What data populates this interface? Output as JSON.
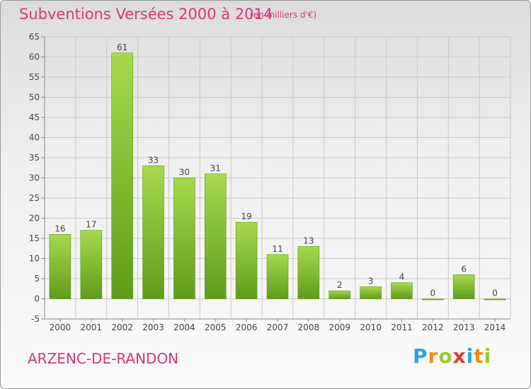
{
  "title": "Subventions Versées 2000 à 2014",
  "subtitle": "(en milliers d'€)",
  "commune": "ARZENC-DE-RANDON",
  "brand": {
    "text": "Proxiti",
    "colors": [
      "#2aa6df",
      "#f08c1c",
      "#9ccb2c",
      "#e23a32",
      "#2aa6df",
      "#f08c1c",
      "#9ccb2c"
    ]
  },
  "colors": {
    "title": "#d4367a",
    "bar_light": "#a7d94e",
    "bar_dark": "#5f9c1a",
    "grid": "#c8c8c8"
  },
  "chart_data": {
    "type": "bar",
    "title": "Subventions Versées 2000 à 2014",
    "categories": [
      "2000",
      "2001",
      "2002",
      "2003",
      "2004",
      "2005",
      "2006",
      "2007",
      "2008",
      "2009",
      "2010",
      "2011",
      "2012",
      "2013",
      "2014"
    ],
    "values": [
      16,
      17,
      61,
      33,
      30,
      31,
      19,
      11,
      13,
      2,
      3,
      4,
      0,
      6,
      0
    ],
    "ylim": [
      -5,
      65
    ],
    "yticks": [
      -5,
      0,
      5,
      10,
      15,
      20,
      25,
      30,
      35,
      40,
      45,
      50,
      55,
      60,
      65
    ],
    "grid": true
  }
}
